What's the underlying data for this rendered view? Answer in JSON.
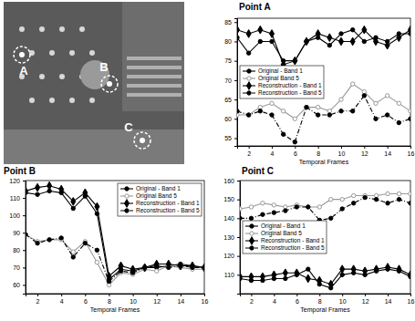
{
  "image": {
    "labels": [
      "A",
      "B",
      "C"
    ]
  },
  "chart_data": [
    {
      "type": "line",
      "title": "Point A",
      "xlabel": "Temporal Frames",
      "x": [
        1,
        2,
        3,
        4,
        5,
        6,
        7,
        8,
        9,
        10,
        11,
        12,
        13,
        14,
        15,
        16
      ],
      "xlim": [
        1,
        16
      ],
      "xticks": [
        2,
        4,
        6,
        8,
        10,
        12,
        14,
        16
      ],
      "ylim": [
        53,
        86
      ],
      "yticks": [
        55,
        60,
        65,
        70,
        75,
        80,
        85
      ],
      "grid": false,
      "legend": "center left",
      "series": [
        {
          "name": "Original - Band 1",
          "color": "#000000",
          "marker": "circle",
          "line_style": "solid",
          "values": [
            81,
            77,
            80,
            80,
            75,
            75,
            80,
            81,
            79,
            82,
            83,
            80,
            81,
            80,
            82,
            82
          ]
        },
        {
          "name": "Original Band 5",
          "color": "#999999",
          "marker": "open-circle",
          "line_style": "solid",
          "values": [
            61,
            61,
            63,
            64,
            62,
            60,
            63,
            63,
            62,
            65,
            69,
            67,
            64,
            66,
            64,
            62
          ]
        },
        {
          "name": "Reconstruction - Band 1",
          "color": "#000000",
          "marker": "diamond",
          "line_style": "solid",
          "values": [
            83,
            82,
            83,
            82,
            74,
            75,
            80,
            82,
            81,
            80,
            80,
            83,
            80,
            79,
            81,
            83
          ]
        },
        {
          "name": "Reconstruction - Band 5",
          "color": "#000000",
          "marker": "circle",
          "line_style": "dashdot",
          "values": [
            62,
            61,
            62,
            61,
            56,
            54,
            63,
            61,
            61,
            62,
            62,
            66,
            60,
            61,
            59,
            60
          ]
        }
      ]
    },
    {
      "type": "line",
      "title": "Point B",
      "xlabel": "Temporal Frames",
      "x": [
        1,
        2,
        3,
        4,
        5,
        6,
        7,
        8,
        9,
        10,
        11,
        12,
        13,
        14,
        15,
        16
      ],
      "xlim": [
        1,
        16
      ],
      "xticks": [
        2,
        4,
        6,
        8,
        10,
        12,
        14,
        16
      ],
      "ylim": [
        55,
        120
      ],
      "yticks": [
        60,
        70,
        80,
        90,
        100,
        110,
        120
      ],
      "grid": false,
      "legend": "upper right",
      "series": [
        {
          "name": "Original - Band 1",
          "color": "#000000",
          "marker": "circle",
          "line_style": "solid",
          "values": [
            113,
            112,
            114,
            113,
            104,
            111,
            101,
            63,
            69,
            68,
            70,
            70,
            71,
            72,
            71,
            70
          ]
        },
        {
          "name": "Original Band 5",
          "color": "#999999",
          "marker": "open-circle",
          "line_style": "solid",
          "values": [
            89,
            85,
            86,
            86,
            79,
            85,
            73,
            60,
            67,
            66,
            69,
            68,
            71,
            70,
            69,
            69
          ]
        },
        {
          "name": "Reconstruction - Band 1",
          "color": "#000000",
          "marker": "diamond",
          "line_style": "solid",
          "values": [
            114,
            116,
            117,
            115,
            108,
            113,
            105,
            65,
            71,
            69,
            70,
            72,
            72,
            71,
            71,
            70
          ]
        },
        {
          "name": "Reconstruction - Band 5",
          "color": "#000000",
          "marker": "circle",
          "line_style": "dashdot",
          "values": [
            89,
            84,
            86,
            87,
            76,
            84,
            80,
            62,
            68,
            67,
            70,
            71,
            70,
            71,
            70,
            70
          ]
        }
      ]
    },
    {
      "type": "line",
      "title": "Point C",
      "xlabel": "Temporal Frames",
      "x": [
        1,
        2,
        3,
        4,
        5,
        6,
        7,
        8,
        9,
        10,
        11,
        12,
        13,
        14,
        15,
        16
      ],
      "xlim": [
        1,
        16
      ],
      "xticks": [
        2,
        4,
        6,
        8,
        10,
        12,
        14,
        16
      ],
      "ylim": [
        100,
        160
      ],
      "yticks": [
        110,
        120,
        130,
        140,
        150,
        160
      ],
      "grid": false,
      "legend": "center left",
      "series": [
        {
          "name": "Original - Band 1",
          "color": "#000000",
          "marker": "circle",
          "line_style": "solid",
          "values": [
            108,
            107,
            107,
            108,
            108,
            110,
            113,
            105,
            103,
            110,
            111,
            110,
            112,
            113,
            112,
            109
          ]
        },
        {
          "name": "Original Band 5",
          "color": "#999999",
          "marker": "open-circle",
          "line_style": "solid",
          "values": [
            145,
            146,
            148,
            147,
            146,
            147,
            146,
            146,
            150,
            150,
            152,
            152,
            152,
            153,
            153,
            153
          ]
        },
        {
          "name": "Reconstruction - Band 1",
          "color": "#000000",
          "marker": "diamond",
          "line_style": "solid",
          "values": [
            109,
            109,
            109,
            110,
            111,
            111,
            108,
            107,
            105,
            113,
            113,
            112,
            113,
            114,
            113,
            110
          ]
        },
        {
          "name": "Reconstruction - Band 5",
          "color": "#000000",
          "marker": "circle",
          "line_style": "dashdot",
          "values": [
            140,
            140,
            142,
            143,
            144,
            146,
            146,
            139,
            140,
            145,
            148,
            151,
            150,
            148,
            150,
            148
          ]
        }
      ]
    }
  ]
}
